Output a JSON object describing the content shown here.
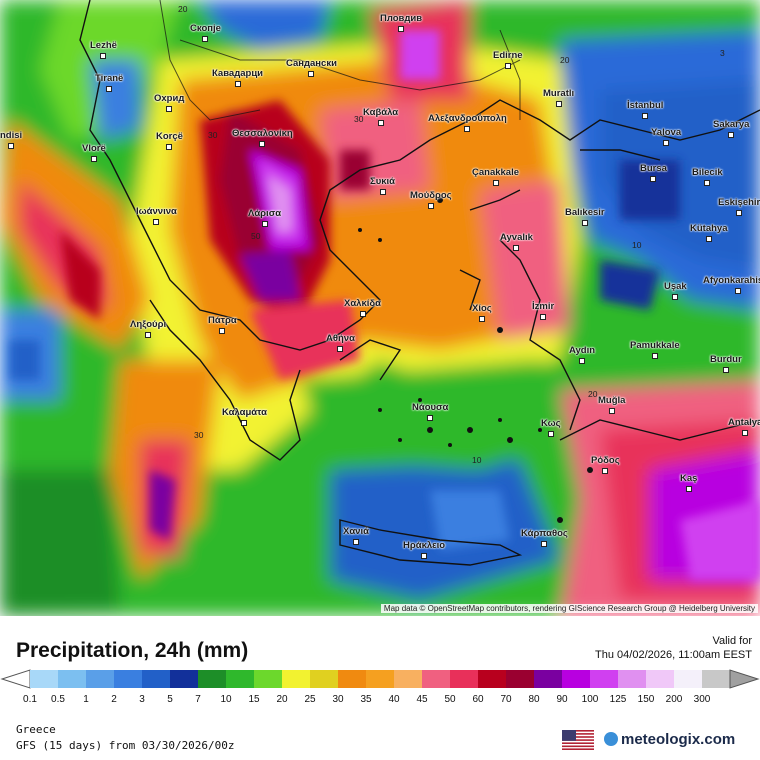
{
  "map": {
    "cities": [
      {
        "name": "Lezhë"
      },
      {
        "name": "Tiranë"
      },
      {
        "name": "Скопје"
      },
      {
        "name": "Кавадарци"
      },
      {
        "name": "Охрид"
      },
      {
        "name": "Korçë"
      },
      {
        "name": "Vlorë"
      },
      {
        "name": "Сандански"
      },
      {
        "name": "Пловдив"
      },
      {
        "name": "Edirne"
      },
      {
        "name": "Muratlı"
      },
      {
        "name": "İstanbul"
      },
      {
        "name": "Yalova"
      },
      {
        "name": "Sakarya"
      },
      {
        "name": "Bursa"
      },
      {
        "name": "Bilecik"
      },
      {
        "name": "Eskişehir"
      },
      {
        "name": "Kütahya"
      },
      {
        "name": "Afyonkarahisar"
      },
      {
        "name": "Uşak"
      },
      {
        "name": "Θεσσαλονίκη"
      },
      {
        "name": "Καβάλα"
      },
      {
        "name": "Αλεξανδρούπολη"
      },
      {
        "name": "Συκιά"
      },
      {
        "name": "Λάρισα"
      },
      {
        "name": "Ιωάννινα"
      },
      {
        "name": "Çanakkale"
      },
      {
        "name": "Μούδρος"
      },
      {
        "name": "Balıkesir"
      },
      {
        "name": "Ayvalık"
      },
      {
        "name": "Χαλκίδα"
      },
      {
        "name": "Πάτρα"
      },
      {
        "name": "Ληξούρι"
      },
      {
        "name": "Αθήνα"
      },
      {
        "name": "Χίος"
      },
      {
        "name": "İzmir"
      },
      {
        "name": "Aydın"
      },
      {
        "name": "Pamukkale"
      },
      {
        "name": "Burdur"
      },
      {
        "name": "Muğla"
      },
      {
        "name": "Antalya"
      },
      {
        "name": "Καλαμάτα"
      },
      {
        "name": "Νάουσα"
      },
      {
        "name": "Κως"
      },
      {
        "name": "Ρόδος"
      },
      {
        "name": "Kaş"
      },
      {
        "name": "Χανιά"
      },
      {
        "name": "Ηράκλειο"
      },
      {
        "name": "Κάρπαθος"
      },
      {
        "name": "ndisi"
      }
    ],
    "contour_labels": [
      "20",
      "30",
      "50",
      "30",
      "30",
      "10",
      "20",
      "20",
      "10",
      "3",
      "10",
      "20",
      "30",
      "10",
      "20"
    ],
    "attribution": "Map data © OpenStreetMap contributors, rendering GIScience Research Group @ Heidelberg University"
  },
  "footer": {
    "title": "Precipitation, 24h (mm)",
    "valid_label": "Valid for",
    "valid_time": "Thu 04/02/2026, 11:00am EEST",
    "region": "Greece",
    "model": "GFS (15 days) from 03/30/2026/00z",
    "brand": "meteologix.com"
  },
  "legend": {
    "labels": [
      "0.1",
      "0.5",
      "1",
      "2",
      "3",
      "5",
      "7",
      "10",
      "15",
      "20",
      "25",
      "30",
      "35",
      "40",
      "45",
      "50",
      "60",
      "70",
      "80",
      "90",
      "100",
      "125",
      "150",
      "200",
      "300"
    ],
    "colors": [
      "#a8d8f8",
      "#7cbff0",
      "#5a9fe8",
      "#3a7fe0",
      "#2260c8",
      "#12309a",
      "#1d8e28",
      "#2fb82c",
      "#6cd82c",
      "#f2f230",
      "#e0d020",
      "#f08a10",
      "#f5a020",
      "#f8b060",
      "#f06080",
      "#e8305a",
      "#b8001e",
      "#9a0030",
      "#7a00a0",
      "#b800e0",
      "#d040f0",
      "#e090f0",
      "#f0c8f8",
      "#f4f0fa",
      "#c8c8c8"
    ]
  }
}
